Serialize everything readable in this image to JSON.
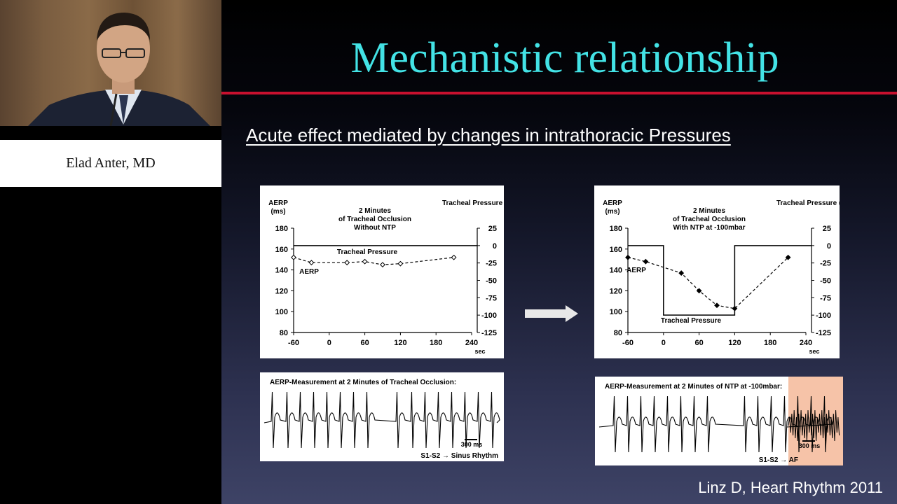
{
  "speaker": {
    "name": "Elad Anter, MD"
  },
  "slide": {
    "title": "Mechanistic relationship",
    "subtitle": "Acute effect mediated by changes in intrathoracic Pressures",
    "citation": "Linz D, Heart Rhythm 2011",
    "colors": {
      "title": "#43e3e6",
      "rule": "#c8102e",
      "ecg_highlight": "#f6c3a8"
    }
  },
  "chart_data": [
    {
      "type": "line",
      "title": "2 Minutes of Tracheal Occlusion Without NTP",
      "ylabel": "AERP (ms)",
      "y2label": "Tracheal Pressure (mbar)",
      "xlabel": "sec",
      "xticks": [
        -60,
        0,
        60,
        120,
        180,
        240
      ],
      "yticks": [
        80,
        100,
        120,
        140,
        160,
        180
      ],
      "y2ticks": [
        25,
        0,
        -25,
        -50,
        -75,
        -100,
        -125
      ],
      "xlim": [
        -60,
        240
      ],
      "ylim": [
        80,
        180
      ],
      "y2lim": [
        -125,
        25
      ],
      "series": [
        {
          "name": "AERP",
          "style": "dashed-open-diamond",
          "axis": "left",
          "x": [
            -60,
            -30,
            30,
            60,
            90,
            120,
            210
          ],
          "y": [
            152,
            147,
            147,
            148,
            145,
            146,
            152
          ]
        },
        {
          "name": "Tracheal Pressure",
          "style": "solid-step",
          "axis": "right",
          "x": [
            -60,
            240
          ],
          "y": [
            0,
            0
          ]
        }
      ]
    },
    {
      "type": "line",
      "title": "2 Minutes of Tracheal Occlusion With NTP at -100mbar",
      "ylabel": "AERP (ms)",
      "y2label": "Tracheal Pressure (mbar)",
      "xlabel": "sec",
      "xticks": [
        -60,
        0,
        60,
        120,
        180,
        240
      ],
      "yticks": [
        80,
        100,
        120,
        140,
        160,
        180
      ],
      "y2ticks": [
        25,
        0,
        -25,
        -50,
        -75,
        -100,
        -125
      ],
      "xlim": [
        -60,
        240
      ],
      "ylim": [
        80,
        180
      ],
      "y2lim": [
        -125,
        25
      ],
      "series": [
        {
          "name": "AERP",
          "style": "dashed-filled-diamond",
          "axis": "left",
          "x": [
            -60,
            -30,
            30,
            60,
            90,
            120,
            210
          ],
          "y": [
            152,
            148,
            137,
            120,
            106,
            103,
            152
          ]
        },
        {
          "name": "Tracheal Pressure",
          "style": "solid-step",
          "axis": "right",
          "x": [
            -60,
            0,
            0,
            120,
            120,
            240
          ],
          "y": [
            0,
            0,
            -100,
            -100,
            0,
            0
          ]
        }
      ]
    }
  ],
  "ecg": [
    {
      "title": "AERP-Measurement at 2 Minutes of Tracheal Occlusion:",
      "scale": "300 ms",
      "result": "S1-S2 → Sinus Rhythm"
    },
    {
      "title": "AERP-Measurement at 2 Minutes of NTP at -100mbar:",
      "scale": "300 ms",
      "result": "S1-S2 → AF"
    }
  ]
}
